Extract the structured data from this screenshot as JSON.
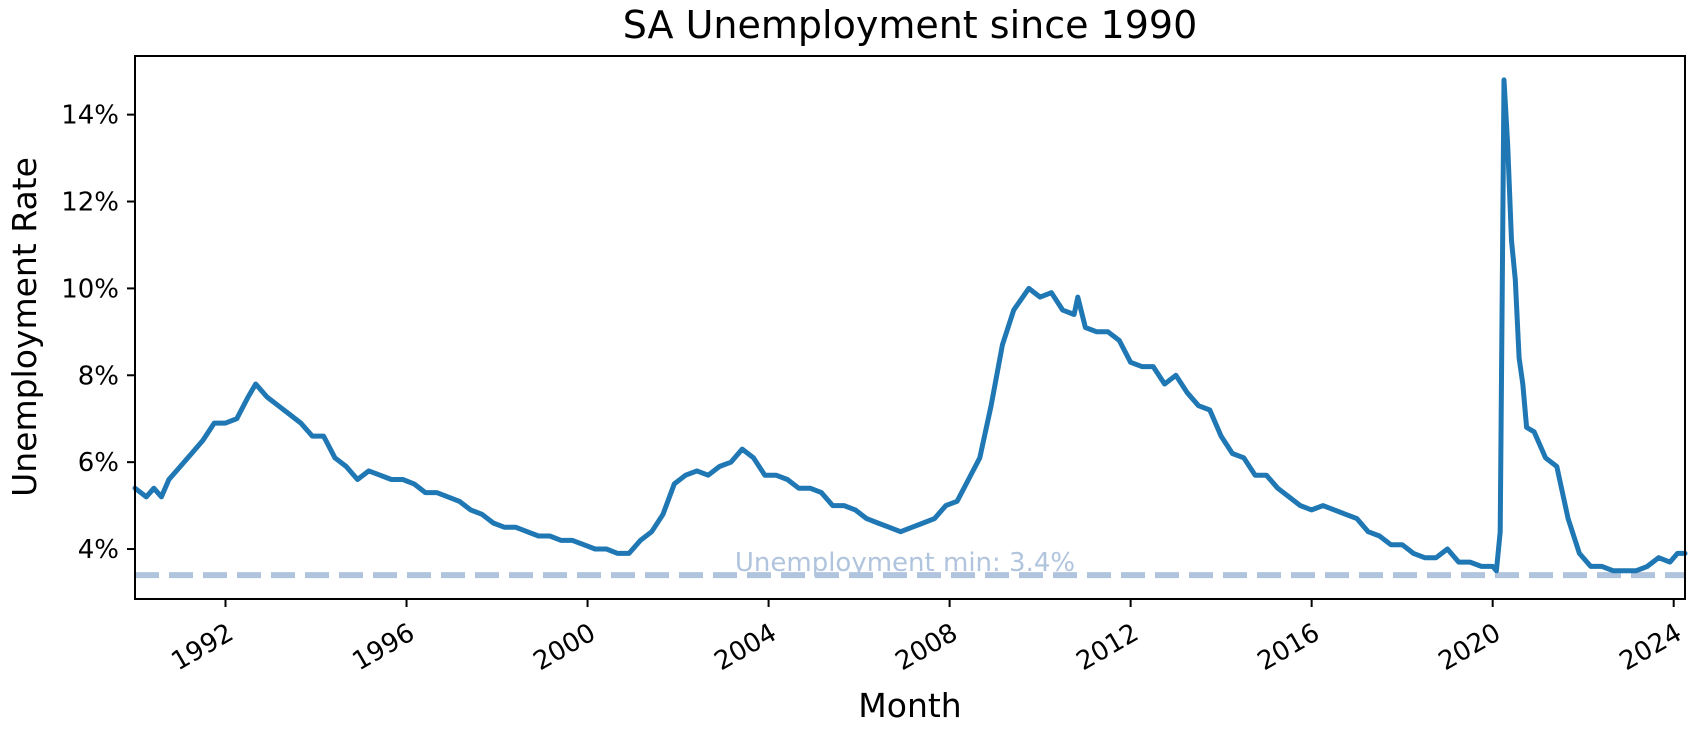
{
  "chart_data": {
    "type": "line",
    "title": "SA Unemployment since 1990",
    "xlabel": "Month",
    "ylabel": "Unemployment Rate",
    "xlim": [
      "1990-01",
      "2024-04"
    ],
    "ylim": [
      2.85,
      15.35
    ],
    "yticks": [
      {
        "value": 4,
        "label": "4%"
      },
      {
        "value": 6,
        "label": "6%"
      },
      {
        "value": 8,
        "label": "8%"
      },
      {
        "value": 10,
        "label": "10%"
      },
      {
        "value": 12,
        "label": "12%"
      },
      {
        "value": 14,
        "label": "14%"
      }
    ],
    "xticks": [
      {
        "value": "1992-01",
        "label": "1992"
      },
      {
        "value": "1996-01",
        "label": "1996"
      },
      {
        "value": "2000-01",
        "label": "2000"
      },
      {
        "value": "2004-01",
        "label": "2004"
      },
      {
        "value": "2008-01",
        "label": "2008"
      },
      {
        "value": "2012-01",
        "label": "2012"
      },
      {
        "value": "2016-01",
        "label": "2016"
      },
      {
        "value": "2020-01",
        "label": "2020"
      },
      {
        "value": "2024-01",
        "label": "2024"
      }
    ],
    "grid": false,
    "series": [
      {
        "color": "#1f77b4",
        "points": [
          [
            "1990-01",
            5.4
          ],
          [
            "1990-04",
            5.2
          ],
          [
            "1990-06",
            5.4
          ],
          [
            "1990-08",
            5.2
          ],
          [
            "1990-10",
            5.6
          ],
          [
            "1991-01",
            5.9
          ],
          [
            "1991-04",
            6.2
          ],
          [
            "1991-07",
            6.5
          ],
          [
            "1991-10",
            6.9
          ],
          [
            "1992-01",
            6.9
          ],
          [
            "1992-04",
            7.0
          ],
          [
            "1992-07",
            7.5
          ],
          [
            "1992-09",
            7.8
          ],
          [
            "1992-12",
            7.5
          ],
          [
            "1993-03",
            7.3
          ],
          [
            "1993-06",
            7.1
          ],
          [
            "1993-09",
            6.9
          ],
          [
            "1993-12",
            6.6
          ],
          [
            "1994-03",
            6.6
          ],
          [
            "1994-06",
            6.1
          ],
          [
            "1994-09",
            5.9
          ],
          [
            "1994-12",
            5.6
          ],
          [
            "1995-03",
            5.8
          ],
          [
            "1995-06",
            5.7
          ],
          [
            "1995-09",
            5.6
          ],
          [
            "1995-12",
            5.6
          ],
          [
            "1996-03",
            5.5
          ],
          [
            "1996-06",
            5.3
          ],
          [
            "1996-09",
            5.3
          ],
          [
            "1996-12",
            5.2
          ],
          [
            "1997-03",
            5.1
          ],
          [
            "1997-06",
            4.9
          ],
          [
            "1997-09",
            4.8
          ],
          [
            "1997-12",
            4.6
          ],
          [
            "1998-03",
            4.5
          ],
          [
            "1998-06",
            4.5
          ],
          [
            "1998-09",
            4.4
          ],
          [
            "1998-12",
            4.3
          ],
          [
            "1999-03",
            4.3
          ],
          [
            "1999-06",
            4.2
          ],
          [
            "1999-09",
            4.2
          ],
          [
            "1999-12",
            4.1
          ],
          [
            "2000-03",
            4.0
          ],
          [
            "2000-06",
            4.0
          ],
          [
            "2000-09",
            3.9
          ],
          [
            "2000-12",
            3.9
          ],
          [
            "2001-03",
            4.2
          ],
          [
            "2001-06",
            4.4
          ],
          [
            "2001-09",
            4.8
          ],
          [
            "2001-12",
            5.5
          ],
          [
            "2002-03",
            5.7
          ],
          [
            "2002-06",
            5.8
          ],
          [
            "2002-09",
            5.7
          ],
          [
            "2002-12",
            5.9
          ],
          [
            "2003-03",
            6.0
          ],
          [
            "2003-06",
            6.3
          ],
          [
            "2003-09",
            6.1
          ],
          [
            "2003-12",
            5.7
          ],
          [
            "2004-03",
            5.7
          ],
          [
            "2004-06",
            5.6
          ],
          [
            "2004-09",
            5.4
          ],
          [
            "2004-12",
            5.4
          ],
          [
            "2005-03",
            5.3
          ],
          [
            "2005-06",
            5.0
          ],
          [
            "2005-09",
            5.0
          ],
          [
            "2005-12",
            4.9
          ],
          [
            "2006-03",
            4.7
          ],
          [
            "2006-06",
            4.6
          ],
          [
            "2006-09",
            4.5
          ],
          [
            "2006-12",
            4.4
          ],
          [
            "2007-03",
            4.5
          ],
          [
            "2007-06",
            4.6
          ],
          [
            "2007-09",
            4.7
          ],
          [
            "2007-12",
            5.0
          ],
          [
            "2008-03",
            5.1
          ],
          [
            "2008-06",
            5.6
          ],
          [
            "2008-09",
            6.1
          ],
          [
            "2008-12",
            7.3
          ],
          [
            "2009-03",
            8.7
          ],
          [
            "2009-06",
            9.5
          ],
          [
            "2009-10",
            10.0
          ],
          [
            "2010-01",
            9.8
          ],
          [
            "2010-04",
            9.9
          ],
          [
            "2010-07",
            9.5
          ],
          [
            "2010-10",
            9.4
          ],
          [
            "2010-11",
            9.8
          ],
          [
            "2011-01",
            9.1
          ],
          [
            "2011-04",
            9.0
          ],
          [
            "2011-07",
            9.0
          ],
          [
            "2011-10",
            8.8
          ],
          [
            "2012-01",
            8.3
          ],
          [
            "2012-04",
            8.2
          ],
          [
            "2012-07",
            8.2
          ],
          [
            "2012-10",
            7.8
          ],
          [
            "2013-01",
            8.0
          ],
          [
            "2013-04",
            7.6
          ],
          [
            "2013-07",
            7.3
          ],
          [
            "2013-10",
            7.2
          ],
          [
            "2014-01",
            6.6
          ],
          [
            "2014-04",
            6.2
          ],
          [
            "2014-07",
            6.1
          ],
          [
            "2014-10",
            5.7
          ],
          [
            "2015-01",
            5.7
          ],
          [
            "2015-04",
            5.4
          ],
          [
            "2015-07",
            5.2
          ],
          [
            "2015-10",
            5.0
          ],
          [
            "2016-01",
            4.9
          ],
          [
            "2016-04",
            5.0
          ],
          [
            "2016-07",
            4.9
          ],
          [
            "2016-10",
            4.8
          ],
          [
            "2017-01",
            4.7
          ],
          [
            "2017-04",
            4.4
          ],
          [
            "2017-07",
            4.3
          ],
          [
            "2017-10",
            4.1
          ],
          [
            "2018-01",
            4.1
          ],
          [
            "2018-04",
            3.9
          ],
          [
            "2018-07",
            3.8
          ],
          [
            "2018-10",
            3.8
          ],
          [
            "2019-01",
            4.0
          ],
          [
            "2019-04",
            3.7
          ],
          [
            "2019-07",
            3.7
          ],
          [
            "2019-10",
            3.6
          ],
          [
            "2020-01",
            3.6
          ],
          [
            "2020-02",
            3.5
          ],
          [
            "2020-03",
            4.4
          ],
          [
            "2020-04",
            14.8
          ],
          [
            "2020-05",
            13.3
          ],
          [
            "2020-06",
            11.1
          ],
          [
            "2020-07",
            10.2
          ],
          [
            "2020-08",
            8.4
          ],
          [
            "2020-09",
            7.8
          ],
          [
            "2020-10",
            6.8
          ],
          [
            "2020-12",
            6.7
          ],
          [
            "2021-03",
            6.1
          ],
          [
            "2021-06",
            5.9
          ],
          [
            "2021-09",
            4.7
          ],
          [
            "2021-12",
            3.9
          ],
          [
            "2022-03",
            3.6
          ],
          [
            "2022-06",
            3.6
          ],
          [
            "2022-09",
            3.5
          ],
          [
            "2022-12",
            3.5
          ],
          [
            "2023-03",
            3.5
          ],
          [
            "2023-06",
            3.6
          ],
          [
            "2023-09",
            3.8
          ],
          [
            "2023-12",
            3.7
          ],
          [
            "2024-02",
            3.9
          ],
          [
            "2024-04",
            3.9
          ]
        ]
      }
    ],
    "reference_line": {
      "value": 3.4,
      "label": "Unemployment min: 3.4%",
      "color": "#b0c4de",
      "style": "dashed"
    }
  }
}
